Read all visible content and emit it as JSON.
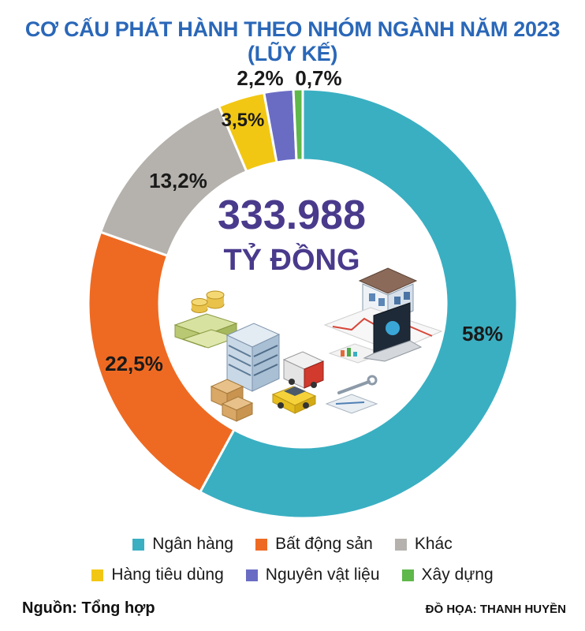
{
  "chart_data": {
    "type": "pie",
    "variant": "donut",
    "title": "CƠ CẤU PHÁT HÀNH THEO NHÓM NGÀNH NĂM 2023 (LŨY KẾ)",
    "center_value": "333.988",
    "center_unit": "TỶ ĐỒNG",
    "slices": [
      {
        "name": "Ngân hàng",
        "value": 58,
        "label": "58%",
        "color": "#3aafc2"
      },
      {
        "name": "Bất động sản",
        "value": 22.5,
        "label": "22,5%",
        "color": "#ee6a22"
      },
      {
        "name": "Khác",
        "value": 13.2,
        "label": "13,2%",
        "color": "#b5b2ad"
      },
      {
        "name": "Hàng tiêu dùng",
        "value": 3.5,
        "label": "3,5%",
        "color": "#f2c714"
      },
      {
        "name": "Nguyên vật liệu",
        "value": 2.2,
        "label": "2,2%",
        "color": "#6a6cc4"
      },
      {
        "name": "Xây dựng",
        "value": 0.7,
        "label": "0,7%",
        "color": "#5fb84a"
      }
    ],
    "legend_placement": "bottom"
  },
  "legend": {
    "row1": [
      {
        "label": "Ngân hàng",
        "color": "#3aafc2"
      },
      {
        "label": "Bất động sản",
        "color": "#ee6a22"
      },
      {
        "label": "Khác",
        "color": "#b5b2ad"
      }
    ],
    "row2": [
      {
        "label": "Hàng tiêu dùng",
        "color": "#f2c714"
      },
      {
        "label": "Nguyên vật liệu",
        "color": "#6a6cc4"
      },
      {
        "label": "Xây dựng",
        "color": "#5fb84a"
      }
    ]
  },
  "footer": {
    "source": "Nguồn: Tổng hợp",
    "credit": "ĐỒ HỌA: THANH HUYỀN"
  },
  "colors": {
    "title": "#2a67b8",
    "center_text": "#4a3a8c"
  },
  "illustration_icons": [
    "coins-icon",
    "cash-stack-icon",
    "office-building-icon",
    "boxes-icon",
    "taxi-icon",
    "delivery-truck-icon",
    "house-icon",
    "laptop-icon",
    "chart-paper-icon",
    "wrench-icon"
  ]
}
